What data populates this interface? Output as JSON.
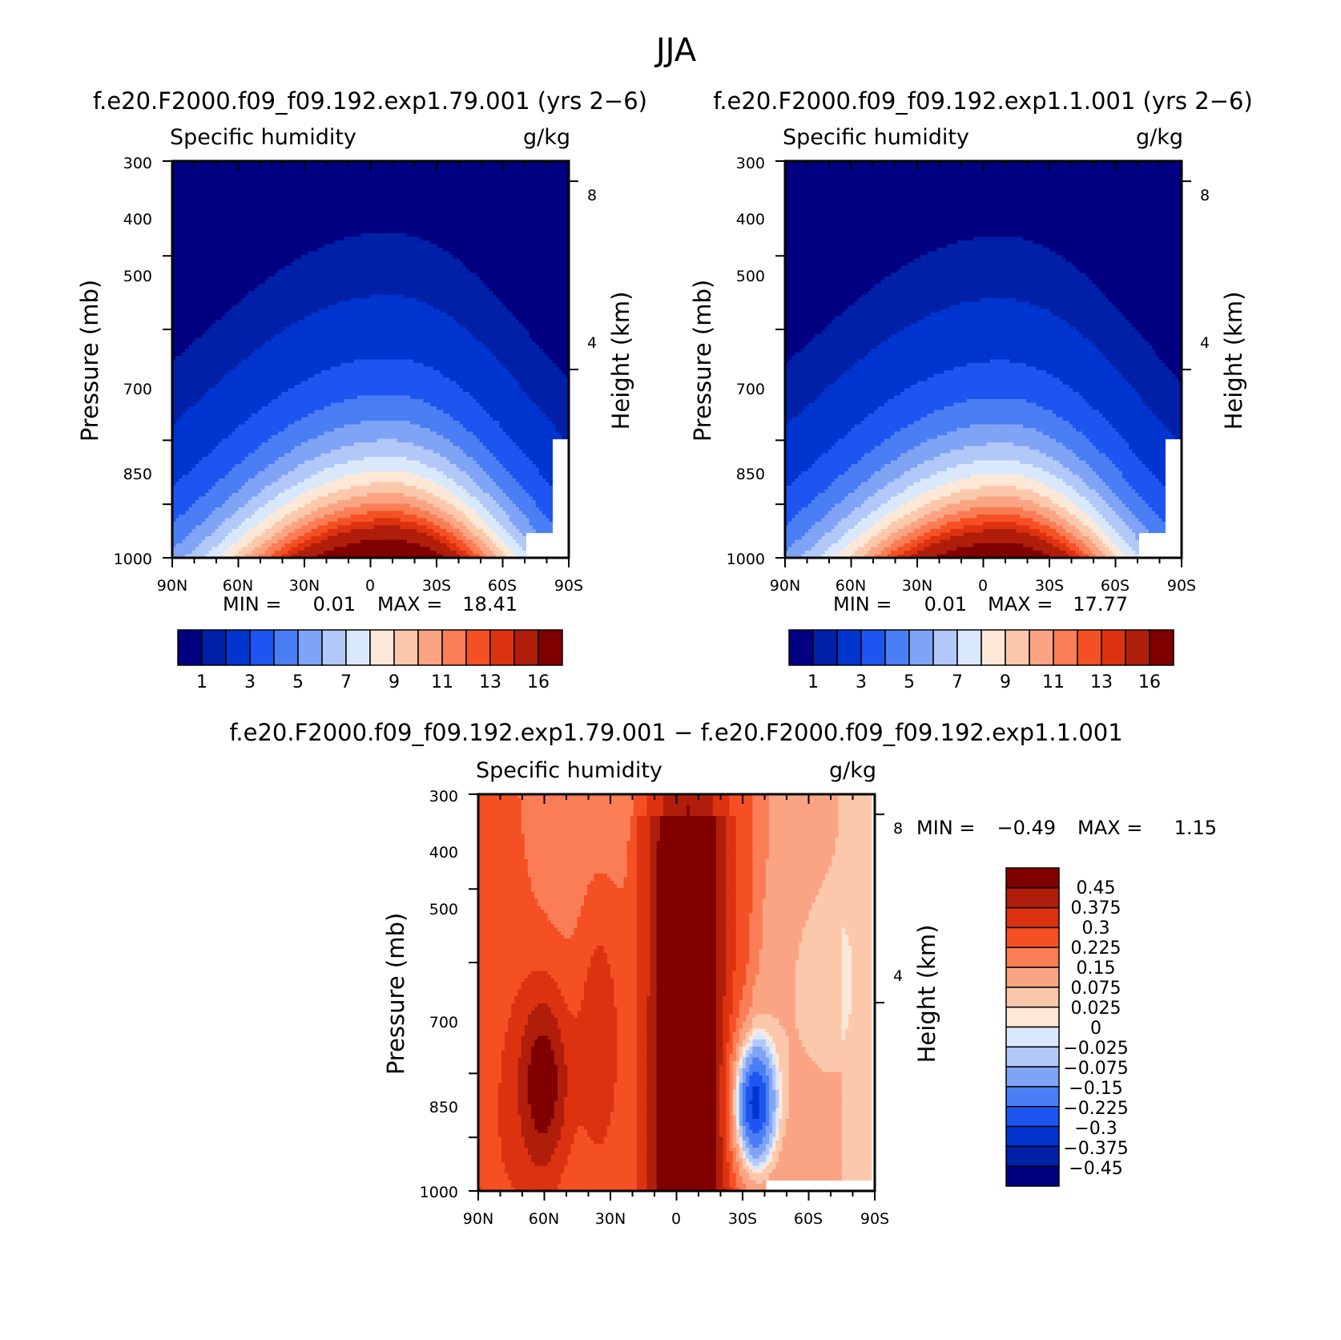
{
  "figure": {
    "title": "JJA"
  },
  "colors": {
    "abs_scale": [
      "#000080",
      "#0020a8",
      "#0035d0",
      "#1e55f0",
      "#4a7ef4",
      "#7fa4f6",
      "#b2c8f9",
      "#dae8fc",
      "#fde8d8",
      "#fcc8ac",
      "#fba483",
      "#fa7d55",
      "#f45024",
      "#dd3210",
      "#b01e0b",
      "#800000"
    ],
    "diff_scale_top_to_bottom": [
      "#800000",
      "#b01e0b",
      "#dd3210",
      "#f45024",
      "#fa7d55",
      "#fba483",
      "#fcc8ac",
      "#fde8d8",
      "#dae8fc",
      "#b2c8f9",
      "#7fa4f6",
      "#4a7ef4",
      "#1e55f0",
      "#0035d0",
      "#0020a8",
      "#000080"
    ]
  },
  "chart_data": [
    {
      "type": "heatmap",
      "panel_title": "f.e20.F2000.f09_f09.192.exp1.79.001 (yrs 2−6)",
      "left_label": "Specific humidity",
      "right_label": "g/kg",
      "ylabel": "Pressure (mb)",
      "ylabel_right": "Height (km)",
      "x_ticks": [
        "90N",
        "60N",
        "30N",
        "0",
        "30S",
        "60S",
        "90S"
      ],
      "y_ticks": [
        "300",
        "400",
        "500",
        "700",
        "850",
        "1000"
      ],
      "y_right_ticks": [
        "8",
        "4"
      ],
      "min_text": "MIN =",
      "min_value": "0.01",
      "max_text": "MAX =",
      "max_value": "18.41",
      "colorbar_labels": [
        "1",
        "3",
        "5",
        "7",
        "9",
        "11",
        "13",
        "16"
      ],
      "ylim": [
        1000,
        300
      ],
      "xlim": [
        90,
        -90
      ],
      "peak_latitude": -8,
      "field_min": 0.01,
      "field_max": 18.41
    },
    {
      "type": "heatmap",
      "panel_title": "f.e20.F2000.f09_f09.192.exp1.1.001 (yrs 2−6)",
      "left_label": "Specific humidity",
      "right_label": "g/kg",
      "ylabel": "Pressure (mb)",
      "ylabel_right": "Height (km)",
      "x_ticks": [
        "90N",
        "60N",
        "30N",
        "0",
        "30S",
        "60S",
        "90S"
      ],
      "y_ticks": [
        "300",
        "400",
        "500",
        "700",
        "850",
        "1000"
      ],
      "y_right_ticks": [
        "8",
        "4"
      ],
      "min_text": "MIN =",
      "min_value": "0.01",
      "max_text": "MAX =",
      "max_value": "17.77",
      "colorbar_labels": [
        "1",
        "3",
        "5",
        "7",
        "9",
        "11",
        "13",
        "16"
      ],
      "ylim": [
        1000,
        300
      ],
      "xlim": [
        90,
        -90
      ],
      "peak_latitude": -8,
      "field_min": 0.01,
      "field_max": 17.77
    },
    {
      "type": "heatmap",
      "panel_title": "f.e20.F2000.f09_f09.192.exp1.79.001 − f.e20.F2000.f09_f09.192.exp1.1.001",
      "left_label": "Specific humidity",
      "right_label": "g/kg",
      "ylabel": "Pressure (mb)",
      "ylabel_right": "Height (km)",
      "x_ticks": [
        "90N",
        "60N",
        "30N",
        "0",
        "30S",
        "60S",
        "90S"
      ],
      "y_ticks": [
        "300",
        "400",
        "500",
        "700",
        "850",
        "1000"
      ],
      "y_right_ticks": [
        "8",
        "4"
      ],
      "min_text": "MIN =",
      "min_value": "−0.49",
      "max_text": "MAX =",
      "max_value": "1.15",
      "colorbar_labels": [
        "0.45",
        "0.375",
        "0.3",
        "0.225",
        "0.15",
        "0.075",
        "0.025",
        "0",
        "−0.025",
        "−0.075",
        "−0.15",
        "−0.225",
        "−0.3",
        "−0.375",
        "−0.45"
      ],
      "ylim": [
        1000,
        300
      ],
      "xlim": [
        90,
        -90
      ],
      "field_min": -0.49,
      "field_max": 1.15
    }
  ]
}
